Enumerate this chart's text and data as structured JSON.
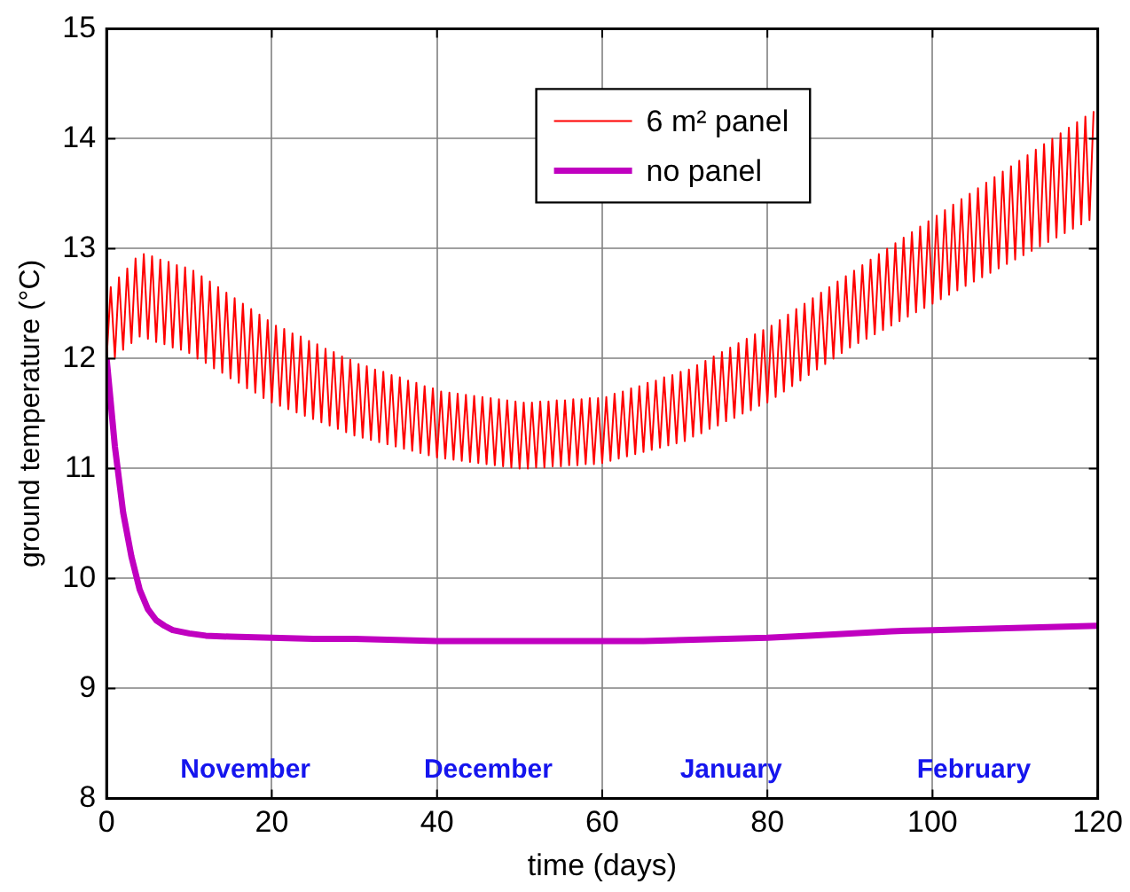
{
  "chart_data": {
    "type": "line",
    "xlabel": "time (days)",
    "ylabel": "ground temperature (°C)",
    "xlim": [
      0,
      120
    ],
    "xticks": [
      0,
      20,
      40,
      60,
      80,
      100,
      120
    ],
    "ylim": [
      8,
      15
    ],
    "yticks": [
      8,
      9,
      10,
      11,
      12,
      13,
      14,
      15
    ],
    "grid": true,
    "legend": "top",
    "marker": "none",
    "line_style": "solid",
    "annotations": [
      "November",
      "December",
      "January",
      "February"
    ],
    "series": [
      {
        "name": "6 m² panel",
        "color": "#ff0000",
        "x": [
          0,
          0.5,
          1,
          1.5,
          2,
          2.5,
          3,
          3.5,
          4,
          4.5,
          5,
          5.5,
          6,
          6.5,
          7,
          7.5,
          8,
          8.5,
          9,
          9.5,
          10,
          10.5,
          11,
          11.5,
          12,
          12.5,
          13,
          13.5,
          14,
          14.5,
          15,
          15.5,
          16,
          16.5,
          17,
          17.5,
          18,
          18.5,
          19,
          19.5,
          20,
          20.5,
          21,
          21.5,
          22,
          22.5,
          23,
          23.5,
          24,
          24.5,
          25,
          25.5,
          26,
          26.5,
          27,
          27.5,
          28,
          28.5,
          29,
          29.5,
          30,
          30.5,
          31,
          31.5,
          32,
          32.5,
          33,
          33.5,
          34,
          34.5,
          35,
          35.5,
          36,
          36.5,
          37,
          37.5,
          38,
          38.5,
          39,
          39.5,
          40,
          40.5,
          41,
          41.5,
          42,
          42.5,
          43,
          43.5,
          44,
          44.5,
          45,
          45.5,
          46,
          46.5,
          47,
          47.5,
          48,
          48.5,
          49,
          49.5,
          50,
          50.5,
          51,
          51.5,
          52,
          52.5,
          53,
          53.5,
          54,
          54.5,
          55,
          55.5,
          56,
          56.5,
          57,
          57.5,
          58,
          58.5,
          59,
          59.5,
          60,
          60.5,
          61,
          61.5,
          62,
          62.5,
          63,
          63.5,
          64,
          64.5,
          65,
          65.5,
          66,
          66.5,
          67,
          67.5,
          68,
          68.5,
          69,
          69.5,
          70,
          70.5,
          71,
          71.5,
          72,
          72.5,
          73,
          73.5,
          74,
          74.5,
          75,
          75.5,
          76,
          76.5,
          77,
          77.5,
          78,
          78.5,
          79,
          79.5,
          80,
          80.5,
          81,
          81.5,
          82,
          82.5,
          83,
          83.5,
          84,
          84.5,
          85,
          85.5,
          86,
          86.5,
          87,
          87.5,
          88,
          88.5,
          89,
          89.5,
          90,
          90.5,
          91,
          91.5,
          92,
          92.5,
          93,
          93.5,
          94,
          94.5,
          95,
          95.5,
          96,
          96.5,
          97,
          97.5,
          98,
          98.5,
          99,
          99.5,
          100,
          100.5,
          101,
          101.5,
          102,
          102.5,
          103,
          103.5,
          104,
          104.5,
          105,
          105.5,
          106,
          106.5,
          107,
          107.5,
          108,
          108.5,
          109,
          109.5,
          110,
          110.5,
          111,
          111.5,
          112,
          112.5,
          113,
          113.5,
          114,
          114.5,
          115,
          115.5,
          116,
          116.5,
          117,
          117.5,
          118,
          118.5,
          119,
          119.5
        ],
        "values": [
          12.0,
          12.65,
          12.01,
          12.74,
          12.08,
          12.82,
          12.14,
          12.91,
          12.2,
          12.95,
          12.18,
          12.93,
          12.15,
          12.9,
          12.13,
          12.88,
          12.1,
          12.85,
          12.08,
          12.83,
          12.05,
          12.8,
          12.0,
          12.75,
          11.96,
          12.7,
          11.91,
          12.65,
          11.87,
          12.6,
          11.82,
          12.55,
          11.78,
          12.5,
          11.73,
          12.45,
          11.69,
          12.4,
          11.64,
          12.35,
          11.6,
          12.3,
          11.57,
          12.27,
          11.54,
          12.23,
          11.51,
          12.2,
          11.48,
          12.16,
          11.45,
          12.13,
          11.42,
          12.09,
          11.39,
          12.06,
          11.36,
          12.02,
          11.33,
          11.99,
          11.3,
          11.95,
          11.28,
          11.93,
          11.26,
          11.9,
          11.24,
          11.88,
          11.22,
          11.85,
          11.2,
          11.83,
          11.18,
          11.8,
          11.16,
          11.78,
          11.14,
          11.75,
          11.12,
          11.73,
          11.1,
          11.7,
          11.09,
          11.69,
          11.08,
          11.68,
          11.07,
          11.67,
          11.06,
          11.66,
          11.05,
          11.65,
          11.04,
          11.64,
          11.03,
          11.63,
          11.02,
          11.62,
          11.01,
          11.61,
          11.0,
          11.6,
          11.0,
          11.6,
          11.01,
          11.61,
          11.01,
          11.61,
          11.02,
          11.62,
          11.02,
          11.62,
          11.03,
          11.63,
          11.03,
          11.63,
          11.04,
          11.64,
          11.04,
          11.64,
          11.05,
          11.65,
          11.07,
          11.68,
          11.09,
          11.7,
          11.11,
          11.73,
          11.13,
          11.75,
          11.15,
          11.78,
          11.17,
          11.8,
          11.19,
          11.83,
          11.21,
          11.85,
          11.23,
          11.88,
          11.25,
          11.9,
          11.29,
          11.94,
          11.32,
          11.98,
          11.36,
          12.02,
          11.39,
          12.06,
          11.43,
          12.1,
          11.46,
          12.14,
          11.5,
          12.18,
          11.53,
          12.22,
          11.57,
          12.26,
          11.6,
          12.3,
          11.65,
          12.35,
          11.7,
          12.4,
          11.75,
          12.45,
          11.8,
          12.5,
          11.85,
          12.55,
          11.9,
          12.6,
          11.95,
          12.65,
          12.0,
          12.7,
          12.05,
          12.75,
          12.1,
          12.8,
          12.14,
          12.85,
          12.18,
          12.9,
          12.22,
          12.95,
          12.26,
          13.0,
          12.3,
          13.05,
          12.34,
          13.1,
          12.38,
          13.15,
          12.42,
          13.2,
          12.46,
          13.25,
          12.5,
          13.3,
          12.54,
          13.35,
          12.58,
          13.4,
          12.62,
          13.45,
          12.66,
          13.5,
          12.7,
          13.55,
          12.74,
          13.6,
          12.78,
          13.65,
          12.82,
          13.7,
          12.86,
          13.75,
          12.9,
          13.8,
          12.94,
          13.85,
          12.98,
          13.9,
          13.02,
          13.95,
          13.06,
          14.0,
          13.1,
          14.05,
          13.14,
          14.1,
          13.18,
          14.15,
          13.22,
          14.2,
          13.26,
          14.25
        ]
      },
      {
        "name": "no panel",
        "color": "#c000c0",
        "x": [
          0,
          1,
          2,
          3,
          4,
          5,
          6,
          7,
          8,
          10,
          12,
          15,
          20,
          25,
          30,
          35,
          40,
          45,
          50,
          55,
          60,
          65,
          70,
          75,
          80,
          85,
          90,
          95,
          100,
          105,
          110,
          115,
          120
        ],
        "values": [
          12.0,
          11.2,
          10.6,
          10.2,
          9.9,
          9.72,
          9.62,
          9.57,
          9.53,
          9.5,
          9.48,
          9.47,
          9.46,
          9.45,
          9.45,
          9.44,
          9.43,
          9.43,
          9.43,
          9.43,
          9.43,
          9.43,
          9.44,
          9.45,
          9.46,
          9.48,
          9.5,
          9.52,
          9.53,
          9.54,
          9.55,
          9.56,
          9.57
        ]
      }
    ]
  }
}
